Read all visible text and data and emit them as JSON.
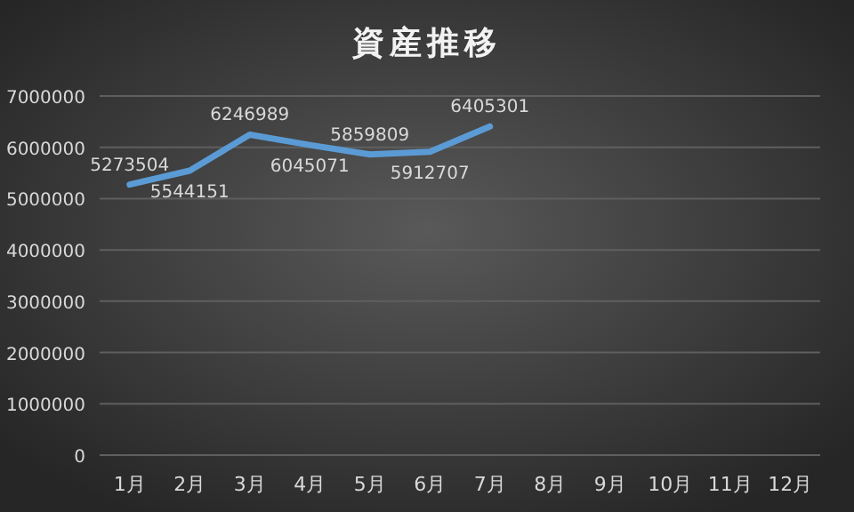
{
  "chart_data": {
    "type": "line",
    "title": "資産推移",
    "categories": [
      "1月",
      "2月",
      "3月",
      "4月",
      "5月",
      "6月",
      "7月",
      "8月",
      "9月",
      "10月",
      "11月",
      "12月"
    ],
    "series": [
      {
        "color": "#5b9bd5",
        "values": [
          5273504,
          5544151,
          6246989,
          6045071,
          5859809,
          5912707,
          6405301,
          null,
          null,
          null,
          null,
          null
        ]
      }
    ],
    "ylim": [
      0,
      7000000
    ],
    "yticks": [
      0,
      1000000,
      2000000,
      3000000,
      4000000,
      5000000,
      6000000,
      7000000
    ],
    "grid": "y",
    "data_labels": true,
    "marker": "none",
    "line_style": "solid"
  }
}
